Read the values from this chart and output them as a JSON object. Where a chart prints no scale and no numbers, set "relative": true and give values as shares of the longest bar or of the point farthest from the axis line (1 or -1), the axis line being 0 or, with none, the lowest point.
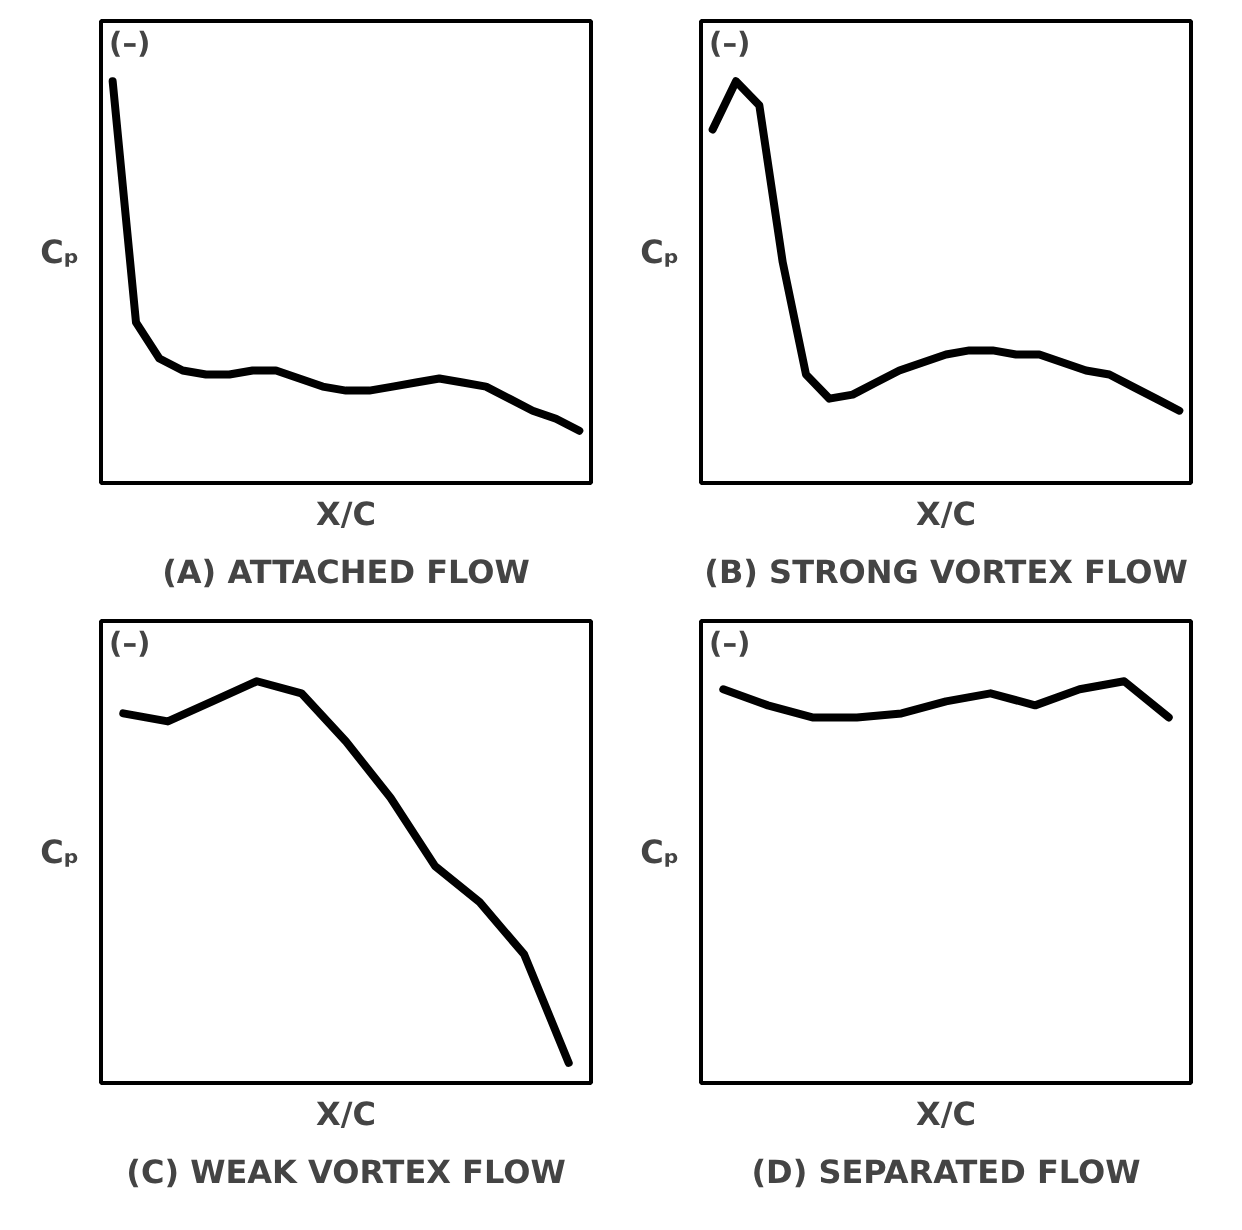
{
  "chart_data": [
    {
      "type": "line",
      "title": "(A) ATTACHED FLOW",
      "xlabel": "X/C",
      "ylabel": "Cₚ",
      "annotations": [
        "(–)"
      ],
      "relative": true,
      "color": "#000000",
      "categories": [
        null,
        null,
        null,
        null,
        null,
        null,
        null,
        null,
        null,
        null,
        null,
        null,
        null,
        null,
        null,
        null,
        null,
        null,
        null,
        null,
        null
      ],
      "values": [
        1,
        0.4,
        0.31,
        0.28,
        0.27,
        0.27,
        0.28,
        0.28,
        0.26,
        0.24,
        0.23,
        0.23,
        0.24,
        0.25,
        0.26,
        0.25,
        0.24,
        0.21,
        0.18,
        0.16,
        0.13
      ]
    },
    {
      "type": "line",
      "title": "(B) STRONG VORTEX FLOW",
      "xlabel": "X/C",
      "ylabel": "Cₚ",
      "annotations": [
        "(–)"
      ],
      "relative": true,
      "color": "#000000",
      "categories": [
        null,
        null,
        null,
        null,
        null,
        null,
        null,
        null,
        null,
        null,
        null,
        null,
        null,
        null,
        null,
        null,
        null,
        null,
        null,
        null,
        null
      ],
      "values": [
        0.88,
        1,
        0.94,
        0.55,
        0.27,
        0.21,
        0.22,
        0.25,
        0.28,
        0.3,
        0.32,
        0.33,
        0.33,
        0.32,
        0.32,
        0.3,
        0.28,
        0.27,
        0.24,
        0.21,
        0.18
      ]
    },
    {
      "type": "line",
      "title": "(C) WEAK VORTEX FLOW",
      "xlabel": "X/C",
      "ylabel": "Cₚ",
      "annotations": [
        "(–)"
      ],
      "relative": true,
      "color": "#000000",
      "categories": [
        null,
        null,
        null,
        null,
        null,
        null,
        null,
        null,
        null,
        null,
        null
      ],
      "values": [
        0.92,
        0.9,
        0.95,
        1,
        0.97,
        0.85,
        0.71,
        0.54,
        0.45,
        0.32,
        0.05
      ]
    },
    {
      "type": "line",
      "title": "(D) SEPARATED FLOW",
      "xlabel": "X/C",
      "ylabel": "Cₚ",
      "annotations": [
        "(–)"
      ],
      "relative": true,
      "color": "#000000",
      "categories": [
        null,
        null,
        null,
        null,
        null,
        null,
        null,
        null,
        null,
        null,
        null
      ],
      "values": [
        0.98,
        0.94,
        0.91,
        0.91,
        0.92,
        0.95,
        0.97,
        0.94,
        0.98,
        1,
        0.91
      ]
    }
  ]
}
